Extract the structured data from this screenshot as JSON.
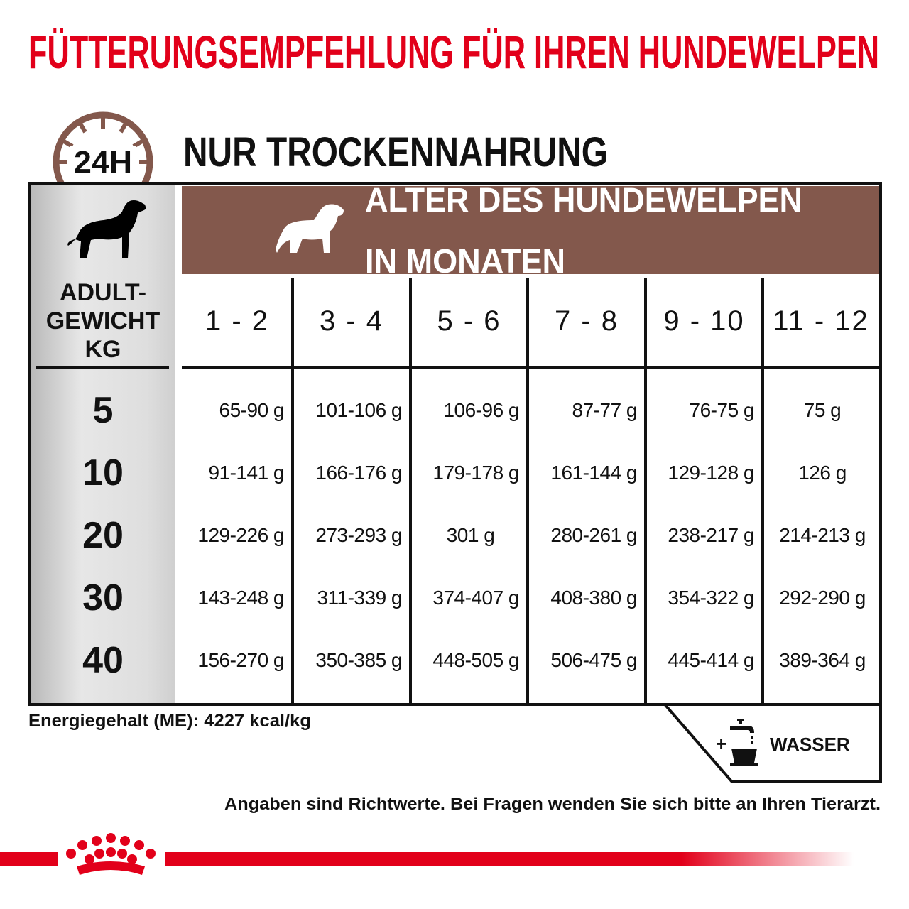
{
  "title": "FÜTTERUNGSEMPFEHLUNG FÜR IHREN HUNDEWELPEN",
  "clock_label": "24H",
  "subtitle": "NUR TROCKENNAHRUNG",
  "header": {
    "line1": "ALTER DES HUNDEWELPEN",
    "line2": "IN MONATEN"
  },
  "weight_label": [
    "ADULT-",
    "GEWICHT",
    "KG"
  ],
  "columns": [
    "1 - 2",
    "3 - 4",
    "5 - 6",
    "7 - 8",
    "9 - 10",
    "11 - 12"
  ],
  "rows": [
    {
      "weight": "5",
      "values": [
        "65-90 g",
        "101-106 g",
        "106-96 g",
        "87-77 g",
        "76-75 g",
        "75 g"
      ]
    },
    {
      "weight": "10",
      "values": [
        "91-141 g",
        "166-176 g",
        "179-178 g",
        "161-144 g",
        "129-128 g",
        "126 g"
      ]
    },
    {
      "weight": "20",
      "values": [
        "129-226 g",
        "273-293 g",
        "301 g",
        "280-261 g",
        "238-217 g",
        "214-213 g"
      ]
    },
    {
      "weight": "30",
      "values": [
        "143-248 g",
        "311-339 g",
        "374-407 g",
        "408-380 g",
        "354-322 g",
        "292-290 g"
      ]
    },
    {
      "weight": "40",
      "values": [
        "156-270 g",
        "350-385 g",
        "448-505 g",
        "506-475 g",
        "445-414 g",
        "389-364 g"
      ]
    }
  ],
  "energy": "Energiegehalt (ME): 4227 kcal/kg",
  "water": {
    "plus": "+",
    "label": "WASSER",
    "icon": "water-tap-bowl-icon"
  },
  "note": "Angaben sind Richtwerte. Bei Fragen wenden Sie sich bitte an Ihren Tierarzt.",
  "colors": {
    "brand_red": "#e2001a",
    "header_brown": "#83584c"
  },
  "logo": "Royal Canin crown"
}
